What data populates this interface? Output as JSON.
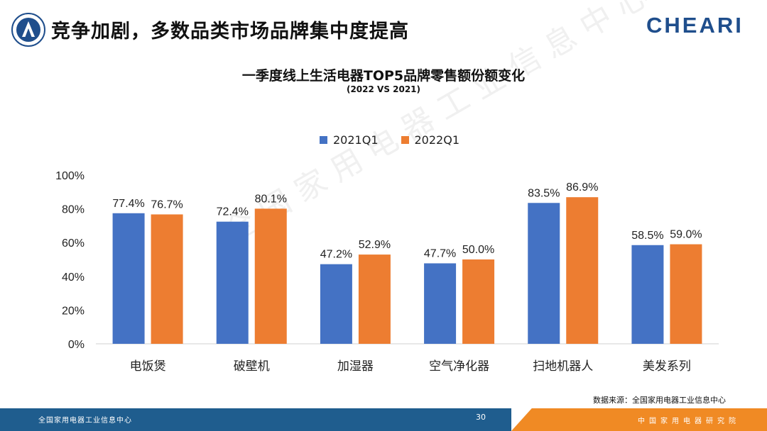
{
  "header": {
    "title": "竞争加剧，多数品类市场品牌集中度提高",
    "brand": "CHEARI"
  },
  "watermark": "全国家用电器工业信息中心",
  "chart_data": {
    "type": "bar",
    "title": "一季度线上生活电器TOP5品牌零售额份额变化",
    "subtitle": "(2022 VS 2021)",
    "categories": [
      "电饭煲",
      "破壁机",
      "加湿器",
      "空气净化器",
      "扫地机器人",
      "美发系列"
    ],
    "series": [
      {
        "name": "2021Q1",
        "color": "#4472c4",
        "values": [
          77.4,
          72.4,
          47.2,
          47.7,
          83.5,
          58.5
        ]
      },
      {
        "name": "2022Q1",
        "color": "#ed7d31",
        "values": [
          76.7,
          80.1,
          52.9,
          50.0,
          86.9,
          59.0
        ]
      }
    ],
    "ylim": [
      0,
      100
    ],
    "yticks": [
      "0%",
      "20%",
      "40%",
      "60%",
      "80%",
      "100%"
    ],
    "data_label_suffix": "%",
    "grid": false,
    "legend": "top-center",
    "xlabel": "",
    "ylabel": ""
  },
  "source": "数据来源：全国家用电器工业信息中心",
  "footer": {
    "org_left": "全国家用电器工业信息中心",
    "page_number": "30",
    "org_right": "中国家用电器研究院"
  }
}
